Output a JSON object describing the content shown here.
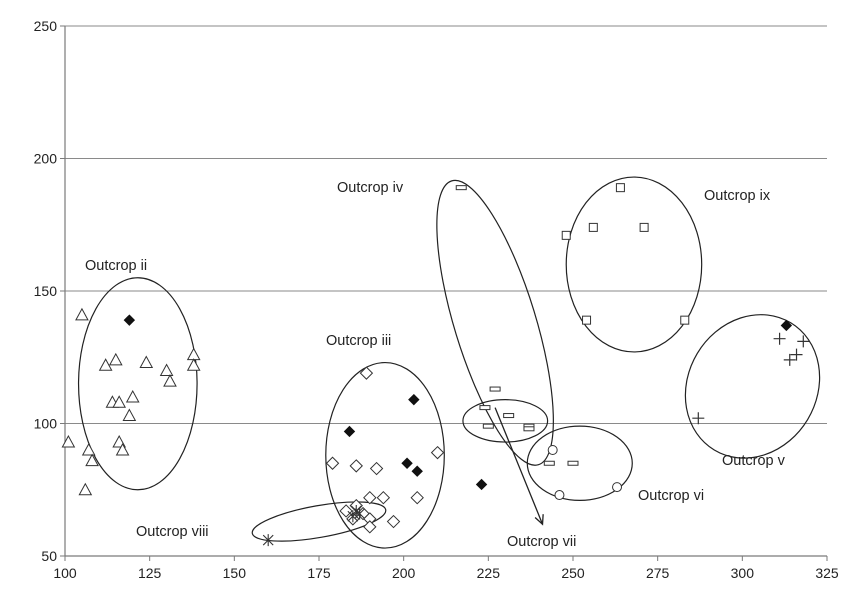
{
  "chart_data": {
    "type": "scatter",
    "xlim": [
      100,
      325
    ],
    "ylim": [
      50,
      250
    ],
    "x_ticks": [
      100,
      125,
      150,
      175,
      200,
      225,
      250,
      275,
      300,
      325
    ],
    "y_ticks": [
      50,
      100,
      150,
      200,
      250
    ],
    "y_grid": true,
    "x_grid": false,
    "series": [
      {
        "marker": "triangle",
        "points": [
          [
            105,
            141
          ],
          [
            120,
            110
          ],
          [
            124,
            123
          ],
          [
            130,
            120
          ],
          [
            131,
            116
          ],
          [
            138,
            126
          ],
          [
            138,
            122
          ],
          [
            112,
            122
          ],
          [
            115,
            124
          ],
          [
            114,
            108
          ],
          [
            116,
            108
          ],
          [
            119,
            103
          ],
          [
            116,
            93
          ],
          [
            117,
            90
          ],
          [
            101,
            93
          ],
          [
            107,
            90
          ],
          [
            108,
            86
          ],
          [
            106,
            75
          ]
        ]
      },
      {
        "marker": "filled-diamond",
        "points": [
          [
            119,
            139
          ],
          [
            184,
            97
          ],
          [
            203,
            109
          ],
          [
            201,
            85
          ],
          [
            204,
            82
          ],
          [
            223,
            77
          ],
          [
            313,
            137
          ]
        ]
      },
      {
        "marker": "diamond",
        "points": [
          [
            189,
            119
          ],
          [
            179,
            85
          ],
          [
            186,
            84
          ],
          [
            192,
            83
          ],
          [
            210,
            89
          ],
          [
            194,
            72
          ],
          [
            204,
            72
          ],
          [
            190,
            72
          ],
          [
            183,
            67
          ],
          [
            186,
            69
          ],
          [
            188,
            66
          ],
          [
            185,
            64
          ],
          [
            190,
            64
          ],
          [
            197,
            63
          ],
          [
            190,
            61
          ]
        ]
      },
      {
        "marker": "bar-rect",
        "points": [
          [
            217,
            189
          ],
          [
            227,
            113
          ],
          [
            224,
            106
          ],
          [
            231,
            103
          ],
          [
            225,
            99
          ],
          [
            237,
            99
          ],
          [
            237,
            98
          ],
          [
            243,
            85
          ],
          [
            250,
            85
          ]
        ]
      },
      {
        "marker": "square",
        "points": [
          [
            264,
            189
          ],
          [
            248,
            171
          ],
          [
            256,
            174
          ],
          [
            271,
            174
          ],
          [
            254,
            139
          ],
          [
            283,
            139
          ]
        ]
      },
      {
        "marker": "plus",
        "points": [
          [
            311,
            132
          ],
          [
            318,
            131
          ],
          [
            316,
            126
          ],
          [
            314,
            124
          ],
          [
            287,
            102
          ]
        ]
      },
      {
        "marker": "circle",
        "points": [
          [
            244,
            90
          ],
          [
            246,
            73
          ],
          [
            263,
            76
          ]
        ]
      },
      {
        "marker": "asterisk",
        "points": [
          [
            160,
            56
          ],
          [
            186,
            67
          ],
          [
            187,
            66
          ],
          [
            185,
            65
          ]
        ]
      }
    ],
    "outcrop_groups": [
      {
        "label": "Outcrop ii",
        "center": [
          121.5,
          115
        ],
        "radii": [
          17.5,
          40
        ]
      },
      {
        "label": "Outcrop iii",
        "center": [
          194.5,
          88
        ],
        "radii": [
          17.5,
          35
        ]
      },
      {
        "label": "Outcrop iv",
        "center": [
          227,
          138
        ],
        "radii": [
          12,
          56
        ],
        "rotate_deg": -17
      },
      {
        "label": "Outcrop v",
        "center": [
          303,
          114
        ],
        "radii": [
          19,
          28
        ],
        "rotate_deg": 31
      },
      {
        "label": "Outcrop vi",
        "center": [
          252,
          85
        ],
        "radii": [
          15.5,
          14
        ]
      },
      {
        "label": "Outcrop vii",
        "center": [
          230,
          101
        ],
        "radii": [
          12.5,
          8
        ]
      },
      {
        "label": "Outcrop viii",
        "center": [
          175,
          63
        ],
        "radii": [
          20,
          6
        ],
        "rotate_deg": -10
      },
      {
        "label": "Outcrop ix",
        "center": [
          268,
          160
        ],
        "radii": [
          20,
          33
        ]
      }
    ],
    "annotations": [
      {
        "id": "ann-ii",
        "text": "Outcrop ii"
      },
      {
        "id": "ann-iii",
        "text": "Outcrop iii"
      },
      {
        "id": "ann-iv",
        "text": "Outcrop iv"
      },
      {
        "id": "ann-v",
        "text": "Outcrop v"
      },
      {
        "id": "ann-vi",
        "text": "Outcrop vi"
      },
      {
        "id": "ann-vii",
        "text": "Outcrop vii"
      },
      {
        "id": "ann-viii",
        "text": "Outcrop viii"
      },
      {
        "id": "ann-ix",
        "text": "Outcrop ix"
      }
    ],
    "arrow": {
      "from": [
        227,
        106
      ],
      "to": [
        241,
        62
      ],
      "target": "Outcrop vii"
    }
  }
}
